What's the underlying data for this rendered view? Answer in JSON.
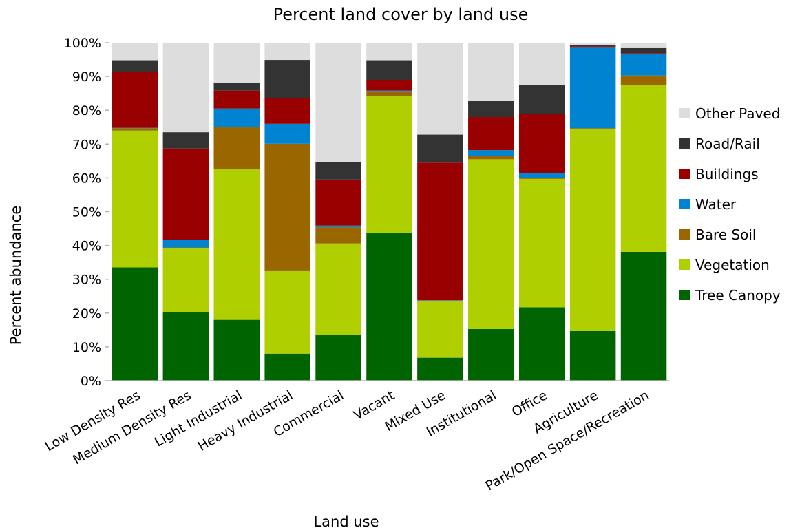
{
  "chart_data": {
    "type": "bar",
    "stacked": true,
    "title": "Percent land cover by land use",
    "xlabel": "Land use",
    "ylabel": "Percent abundance",
    "ylim": [
      0,
      100
    ],
    "yticks": [
      0,
      10,
      20,
      30,
      40,
      50,
      60,
      70,
      80,
      90,
      100
    ],
    "ytick_suffix": "%",
    "grid": false,
    "legend_position": "right",
    "categories": [
      "Low Density Res",
      "Medium Density Res",
      "Light Industrial",
      "Heavy Industrial",
      "Commercial",
      "Vacant",
      "Mixed Use",
      "Institutional",
      "Office",
      "Agriculture",
      "Park/Open Space/Recreation"
    ],
    "series": [
      {
        "name": "Tree Canopy",
        "color": "#006400",
        "values": [
          33.5,
          20.2,
          18.0,
          8.0,
          13.5,
          43.8,
          6.8,
          15.3,
          21.7,
          14.7,
          38.1
        ]
      },
      {
        "name": "Vegetation",
        "color": "#b0cf00",
        "values": [
          40.5,
          19.0,
          44.7,
          24.6,
          27.1,
          40.3,
          16.6,
          50.2,
          38.0,
          59.7,
          49.4
        ]
      },
      {
        "name": "Bare Soil",
        "color": "#996600",
        "values": [
          0.7,
          0.2,
          12.3,
          37.5,
          4.8,
          1.5,
          0.3,
          0.9,
          0.2,
          0.3,
          2.8
        ]
      },
      {
        "name": "Water",
        "color": "#0084d1",
        "values": [
          0.1,
          2.2,
          5.5,
          5.9,
          0.5,
          0.2,
          0.1,
          1.8,
          1.4,
          23.8,
          6.3
        ]
      },
      {
        "name": "Buildings",
        "color": "#990000",
        "values": [
          16.5,
          27.1,
          5.3,
          7.7,
          13.6,
          3.2,
          40.7,
          9.8,
          17.7,
          0.4,
          0.3
        ]
      },
      {
        "name": "Road/Rail",
        "color": "#333333",
        "values": [
          3.5,
          4.8,
          2.2,
          11.2,
          5.2,
          5.8,
          8.3,
          4.7,
          8.5,
          0.3,
          1.5
        ]
      },
      {
        "name": "Other Paved",
        "color": "#dddddd",
        "values": [
          5.2,
          26.5,
          12.0,
          5.1,
          35.3,
          5.2,
          27.2,
          17.3,
          12.5,
          0.8,
          1.6
        ]
      }
    ],
    "legend_order": [
      "Other Paved",
      "Road/Rail",
      "Buildings",
      "Water",
      "Bare Soil",
      "Vegetation",
      "Tree Canopy"
    ]
  }
}
